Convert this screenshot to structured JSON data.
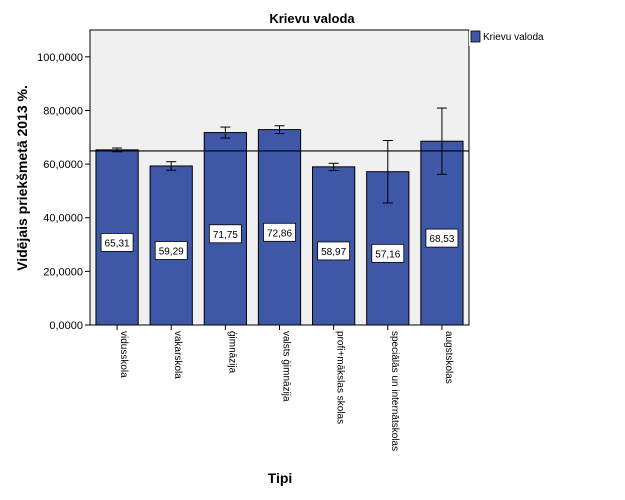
{
  "chart_data": {
    "type": "bar",
    "title": "Krievu valoda",
    "xlabel": "Tipi",
    "ylabel": "Vidējais priekšmetā 2013 %.",
    "categories": [
      "vidusskola",
      "vakarskola",
      "ģimnāzija",
      "valsts ģimnāzija",
      "profi+mākslas skolas",
      "speciālās un internātskolas",
      "augstskolas"
    ],
    "series": [
      {
        "name": "Krievu valoda",
        "values": [
          65.31,
          59.29,
          71.75,
          72.86,
          58.97,
          57.16,
          68.53
        ],
        "value_labels": [
          "65,31",
          "59,29",
          "71,75",
          "72,86",
          "58,97",
          "57,16",
          "68,53"
        ],
        "error_low": [
          64.6,
          57.7,
          69.7,
          71.4,
          57.6,
          45.5,
          56.2
        ],
        "error_high": [
          66.0,
          60.9,
          73.8,
          74.3,
          60.3,
          68.8,
          80.9
        ],
        "color": "#3f57a7"
      }
    ],
    "reference_line": 64.9,
    "ylim": [
      0,
      110
    ],
    "yticks": [
      0,
      20,
      40,
      60,
      80,
      100
    ],
    "ytick_labels": [
      "0,0000",
      "20,0000",
      "40,0000",
      "60,0000",
      "80,0000",
      "100,0000"
    ],
    "grid": false,
    "legend_position": "right",
    "plot_background": "#f0f0f0",
    "bar_outline": "#000000"
  }
}
